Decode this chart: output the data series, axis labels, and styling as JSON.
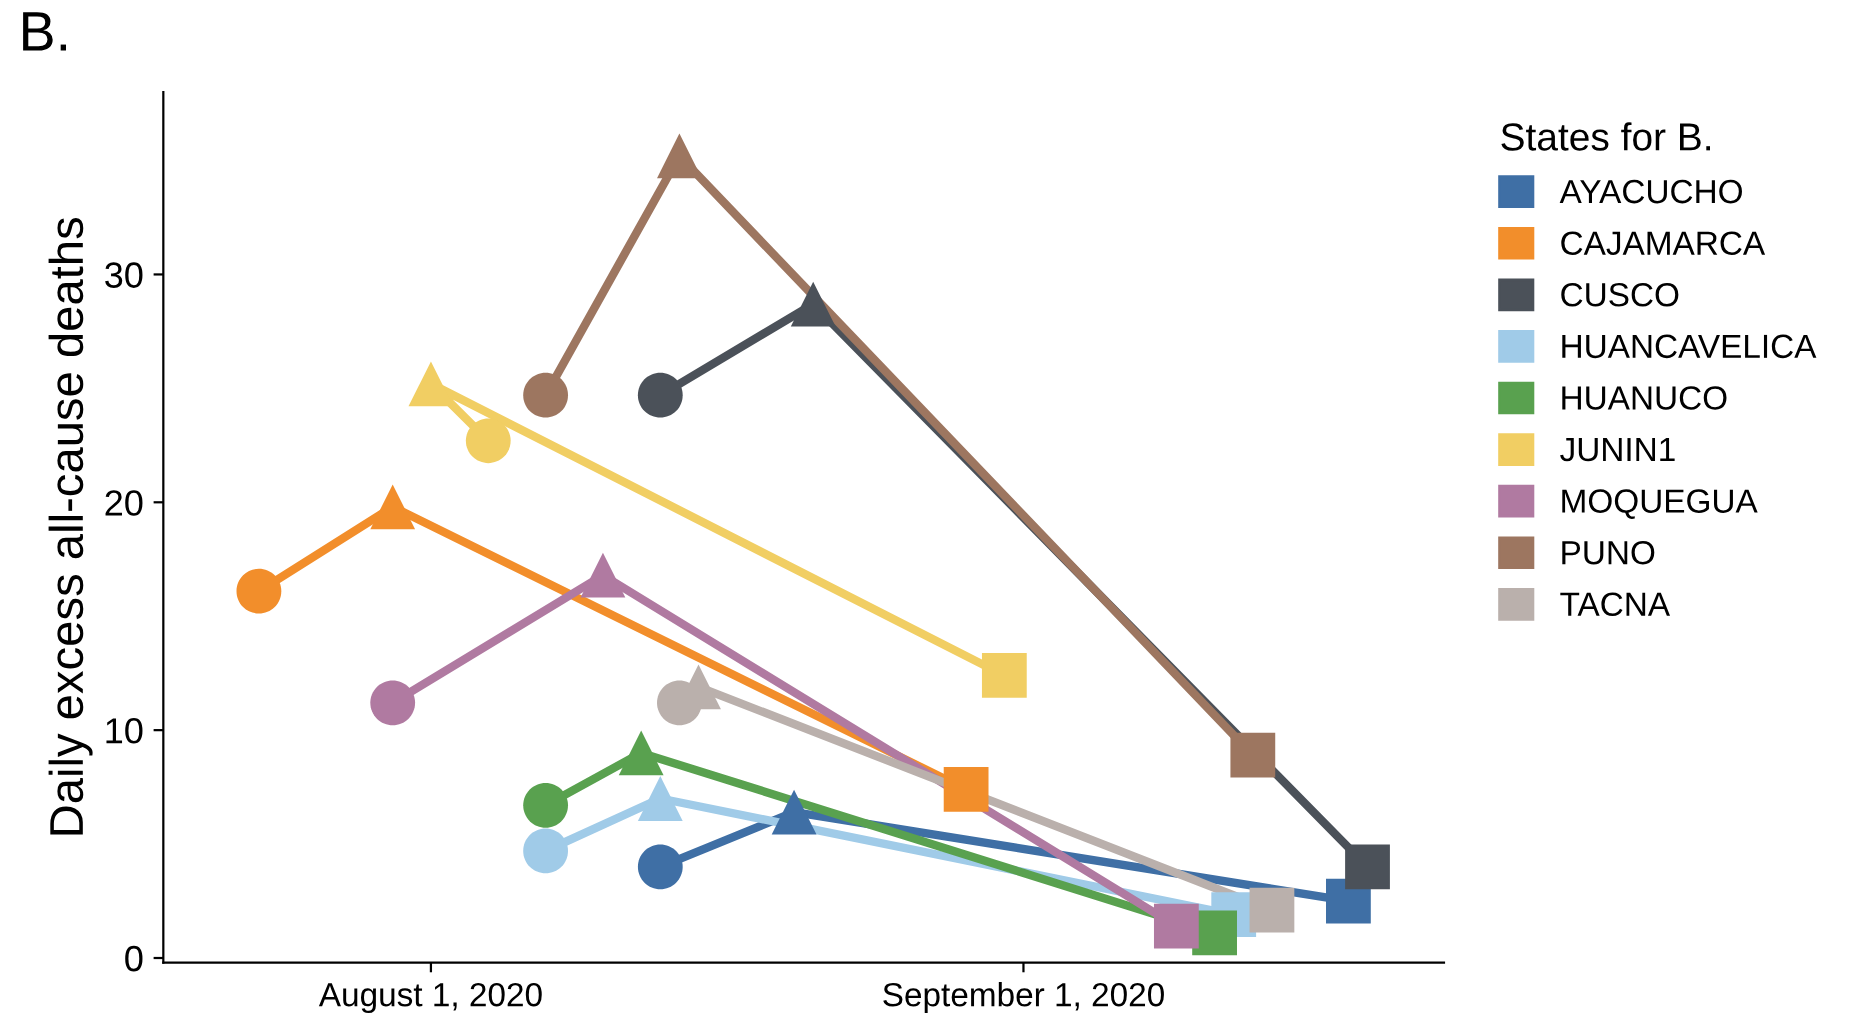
{
  "chart_data": {
    "type": "line",
    "ylabel": "Daily excess all-cause deaths",
    "legend_title": "States for B.",
    "annotations": [
      "B."
    ],
    "legend": "right",
    "grid": false,
    "marker": [
      "circle",
      "triangle",
      "square"
    ],
    "xlim": [
      "2020-07-18",
      "2020-09-23"
    ],
    "xticks": [
      {
        "value": "2020-08-01",
        "label": "August 1, 2020"
      },
      {
        "value": "2020-09-01",
        "label": "September 1, 2020"
      }
    ],
    "ylim": [
      -0.2,
      38
    ],
    "yticks": [
      0,
      10,
      20,
      30
    ],
    "series": [
      {
        "name": "AYACUCHO",
        "color": "#3f6fa5",
        "x": [
          "2020-08-13",
          "2020-08-20",
          "2020-09-18"
        ],
        "values": [
          4.0,
          6.4,
          2.5
        ]
      },
      {
        "name": "CAJAMARCA",
        "color": "#f28e2b",
        "x": [
          "2020-07-23",
          "2020-07-30",
          "2020-08-29"
        ],
        "values": [
          16.1,
          19.8,
          7.4
        ]
      },
      {
        "name": "CUSCO",
        "color": "#4b5159",
        "x": [
          "2020-08-13",
          "2020-08-21",
          "2020-09-19"
        ],
        "values": [
          24.7,
          28.7,
          4.0
        ]
      },
      {
        "name": "HUANCAVELICA",
        "color": "#a0cbe8",
        "x": [
          "2020-08-07",
          "2020-08-13",
          "2020-09-12"
        ],
        "values": [
          4.7,
          7.0,
          1.9
        ]
      },
      {
        "name": "HUANUCO",
        "color": "#59a14f",
        "x": [
          "2020-08-07",
          "2020-08-12",
          "2020-09-11"
        ],
        "values": [
          6.7,
          9.0,
          1.1
        ]
      },
      {
        "name": "JUNIN1",
        "color": "#f1ce63",
        "x": [
          "2020-08-04",
          "2020-08-01",
          "2020-08-31"
        ],
        "values": [
          22.7,
          25.2,
          12.4
        ]
      },
      {
        "name": "MOQUEGUA",
        "color": "#b07aa1",
        "x": [
          "2020-07-30",
          "2020-08-10",
          "2020-09-09"
        ],
        "values": [
          11.2,
          16.8,
          1.4
        ]
      },
      {
        "name": "PUNO",
        "color": "#9d7660",
        "x": [
          "2020-08-07",
          "2020-08-14",
          "2020-09-13"
        ],
        "values": [
          24.7,
          35.2,
          8.9
        ]
      },
      {
        "name": "TACNA",
        "color": "#bab0ac",
        "x": [
          "2020-08-14",
          "2020-08-15",
          "2020-09-14"
        ],
        "values": [
          11.2,
          11.9,
          2.1
        ]
      }
    ]
  }
}
